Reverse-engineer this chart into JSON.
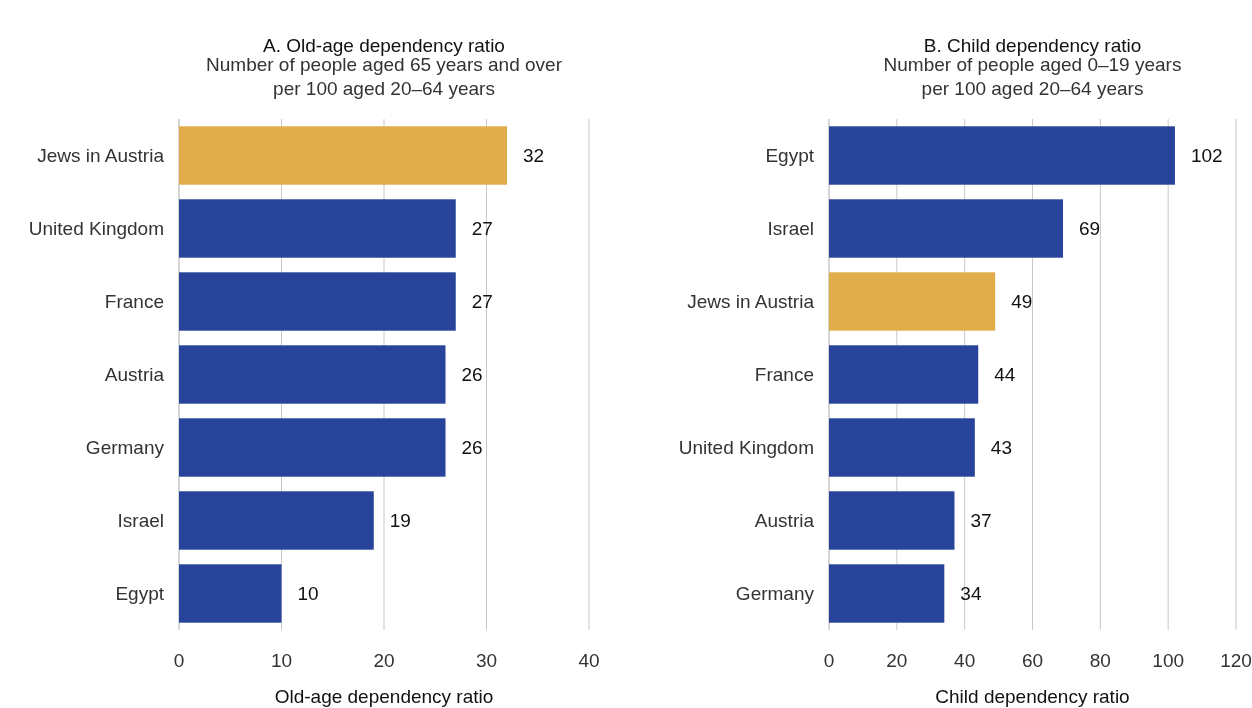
{
  "chart_data": [
    {
      "type": "bar",
      "orientation": "horizontal",
      "title": "A. Old-age dependency ratio",
      "subtitle": "Number of people aged 65 years and over\nper 100 aged 20–64 years",
      "xlabel": "Old-age dependency ratio",
      "categories": [
        "Jews in Austria",
        "United Kingdom",
        "France",
        "Austria",
        "Germany",
        "Israel",
        "Egypt"
      ],
      "values": [
        32,
        27,
        27,
        26,
        26,
        19,
        10
      ],
      "colors": [
        "#e0ad4a",
        "#27449a",
        "#27449a",
        "#27449a",
        "#27449a",
        "#27449a",
        "#27449a"
      ],
      "xlim": [
        0,
        40
      ],
      "xticks": [
        0,
        10,
        20,
        30,
        40
      ],
      "grid": "x",
      "data_labels": true
    },
    {
      "type": "bar",
      "orientation": "horizontal",
      "title": "B. Child dependency ratio",
      "subtitle": "Number of people aged 0–19 years\nper 100 aged 20–64 years",
      "xlabel": "Child dependency ratio",
      "categories": [
        "Egypt",
        "Israel",
        "Jews in Austria",
        "France",
        "United Kingdom",
        "Austria",
        "Germany"
      ],
      "values": [
        102,
        69,
        49,
        44,
        43,
        37,
        34
      ],
      "colors": [
        "#27449a",
        "#27449a",
        "#e0ad4a",
        "#27449a",
        "#27449a",
        "#27449a",
        "#27449a"
      ],
      "xlim": [
        0,
        120
      ],
      "xticks": [
        0,
        20,
        40,
        60,
        80,
        100,
        120
      ],
      "grid": "x",
      "data_labels": true
    }
  ]
}
